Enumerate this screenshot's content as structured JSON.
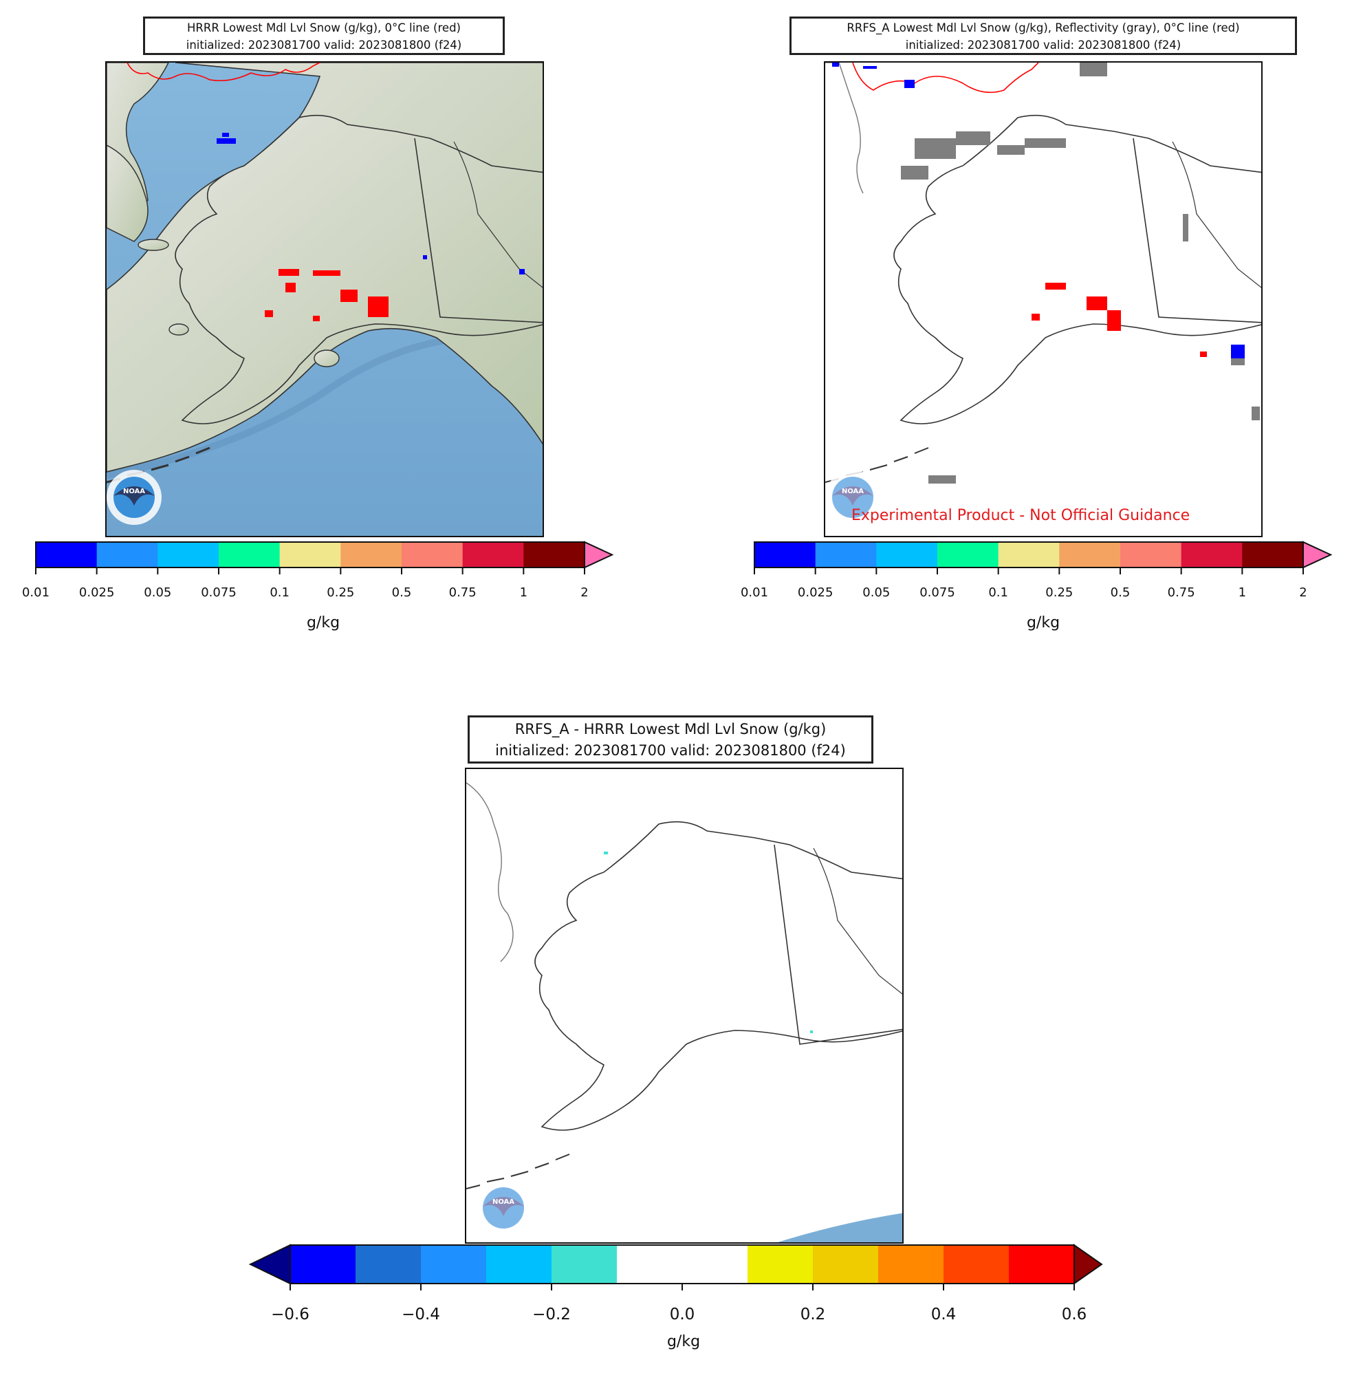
{
  "panels": [
    {
      "id": "hrrr",
      "title_line1": "HRRR Lowest Mdl Lvl Snow (g/kg), 0°C line (red)",
      "title_line2": "initialized: 2023081700 valid: 2023081800 (f24)",
      "background": "terrain",
      "logo_text": "NOAA",
      "colorbar": {
        "unit": "g/kg",
        "ticks": [
          "0.01",
          "0.025",
          "0.05",
          "0.075",
          "0.1",
          "0.25",
          "0.5",
          "0.75",
          "1",
          "2"
        ],
        "colors": [
          "#0000ff",
          "#1e90ff",
          "#00bfff",
          "#00fa9a",
          "#f0e68c",
          "#f4a460",
          "#fa8072",
          "#dc143c",
          "#800000"
        ],
        "extend_max_color": "#ff6eb4"
      }
    },
    {
      "id": "rrfs",
      "title_line1": "RRFS_A Lowest Mdl Lvl Snow (g/kg), Reflectivity (gray), 0°C line (red)",
      "title_line2": "initialized: 2023081700 valid: 2023081800 (f24)",
      "background": "white",
      "logo_text": "NOAA",
      "disclaimer": "Experimental Product - Not Official Guidance",
      "colorbar": {
        "unit": "g/kg",
        "ticks": [
          "0.01",
          "0.025",
          "0.05",
          "0.075",
          "0.1",
          "0.25",
          "0.5",
          "0.75",
          "1",
          "2"
        ],
        "colors": [
          "#0000ff",
          "#1e90ff",
          "#00bfff",
          "#00fa9a",
          "#f0e68c",
          "#f4a460",
          "#fa8072",
          "#dc143c",
          "#800000"
        ],
        "extend_max_color": "#ff6eb4"
      }
    },
    {
      "id": "diff",
      "title_line1": "RRFS_A - HRRR Lowest Mdl Lvl Snow (g/kg)",
      "title_line2": "initialized: 2023081700 valid: 2023081800 (f24)",
      "background": "white",
      "logo_text": "NOAA",
      "colorbar": {
        "unit": "g/kg",
        "ticks": [
          "−0.6",
          "−0.4",
          "−0.2",
          "0.0",
          "0.2",
          "0.4",
          "0.6"
        ],
        "colors": [
          "#0000ff",
          "#1c6fd0",
          "#1e90ff",
          "#00bfff",
          "#40e0d0",
          "#ffffff",
          "#ffffff",
          "#eeee00",
          "#eecc00",
          "#ff8800",
          "#ff4400",
          "#ff0000"
        ],
        "extend_min_color": "#00008b",
        "extend_max_color": "#8b0000"
      }
    }
  ],
  "colors": {
    "ocean": "#7aaed6",
    "land": "#d9ddd0",
    "freezing_line": "#ff0000",
    "reflectivity": "#7f7f7f",
    "coast": "#333333"
  }
}
